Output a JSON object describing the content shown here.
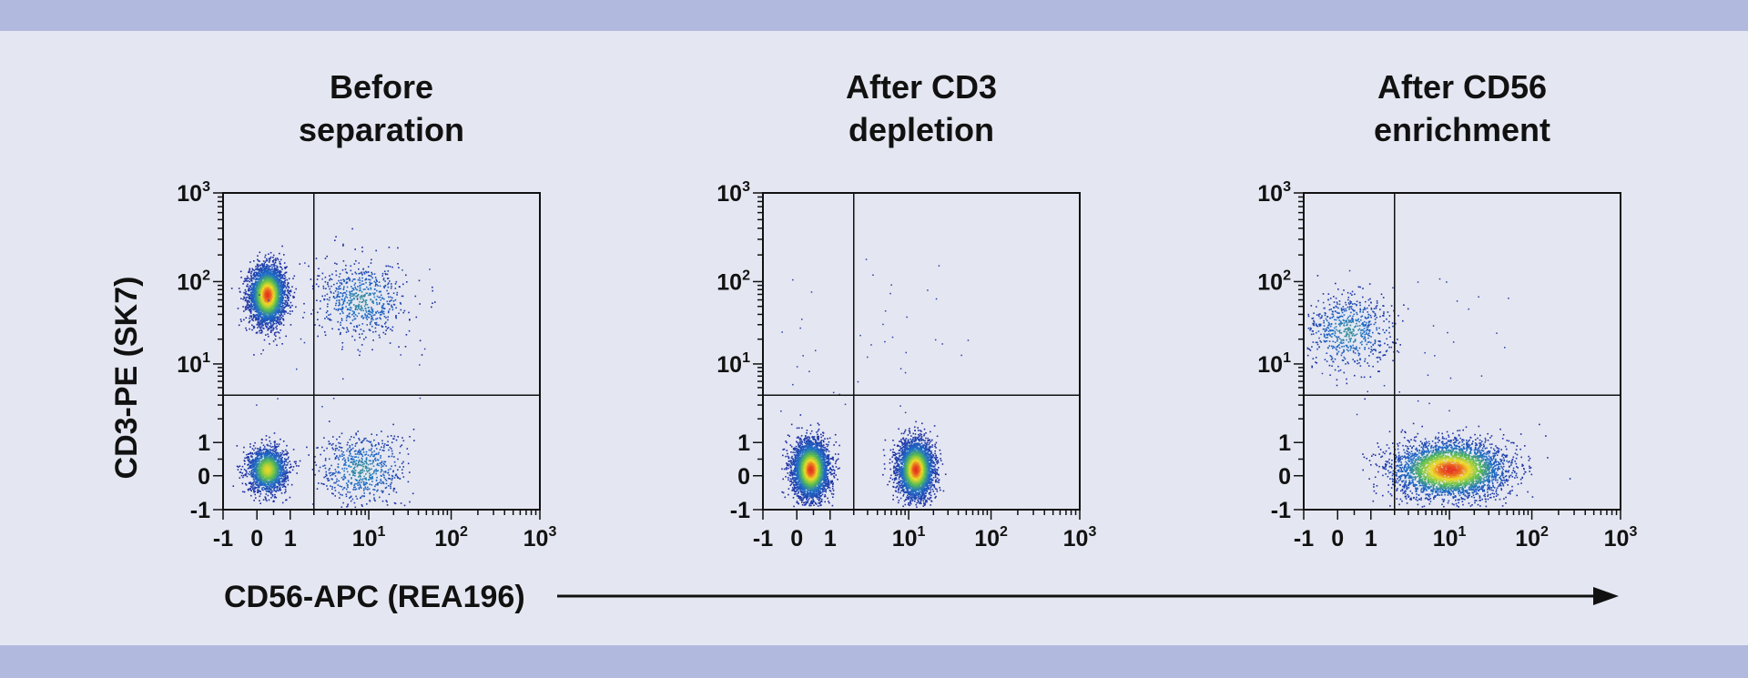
{
  "colors": {
    "band": "#b2b9de",
    "background": "#e4e7f1",
    "axis": "#111111",
    "density_low": "#1a2a9c",
    "density_high": "#e8261f"
  },
  "figure": {
    "ylabel": "CD3-PE (SK7)",
    "xlabel": "CD56-APC (REA196)",
    "y_ticks": [
      {
        "base": "10",
        "exp": "3"
      },
      {
        "base": "10",
        "exp": "2"
      },
      {
        "base": "10",
        "exp": "1"
      },
      {
        "base": "1",
        "exp": ""
      },
      {
        "base": "0",
        "exp": ""
      },
      {
        "base": "-1",
        "exp": ""
      }
    ],
    "x_ticks": [
      {
        "base": "-1",
        "exp": ""
      },
      {
        "base": "0",
        "exp": ""
      },
      {
        "base": "1",
        "exp": ""
      },
      {
        "base": "10",
        "exp": "1"
      },
      {
        "base": "10",
        "exp": "2"
      },
      {
        "base": "10",
        "exp": "3"
      }
    ]
  },
  "chart_data": [
    {
      "type": "scatter",
      "title_lines": [
        "Before",
        "separation"
      ],
      "xlabel": "CD56-APC (REA196)",
      "ylabel": "CD3-PE (SK7)",
      "scale": "biexponential",
      "xlim": [
        -1,
        1000
      ],
      "ylim": [
        -1,
        1000
      ],
      "gates": {
        "x": 2,
        "y": 4
      },
      "populations": [
        {
          "name": "",
          "x": 0.3,
          "y": 70,
          "density": "high"
        },
        {
          "name": "",
          "x": 0.3,
          "y": 0.2,
          "density": "medium"
        },
        {
          "name": "",
          "x": 8,
          "y": 0.2,
          "density": "low"
        },
        {
          "name": "",
          "x": 8,
          "y": 60,
          "density": "low"
        }
      ]
    },
    {
      "type": "scatter",
      "title_lines": [
        "After CD3",
        "depletion"
      ],
      "xlabel": "CD56-APC (REA196)",
      "ylabel": "CD3-PE (SK7)",
      "scale": "biexponential",
      "xlim": [
        -1,
        1000
      ],
      "ylim": [
        -1,
        1000
      ],
      "gates": {
        "x": 2,
        "y": 4
      },
      "populations": [
        {
          "name": "",
          "x": 0.4,
          "y": 0.2,
          "density": "high"
        },
        {
          "name": "",
          "x": 12,
          "y": 0.2,
          "density": "high"
        }
      ]
    },
    {
      "type": "scatter",
      "title_lines": [
        "After CD56",
        "enrichment"
      ],
      "xlabel": "CD56-APC (REA196)",
      "ylabel": "CD3-PE (SK7)",
      "scale": "biexponential",
      "xlim": [
        -1,
        1000
      ],
      "ylim": [
        -1,
        1000
      ],
      "gates": {
        "x": 2,
        "y": 4
      },
      "populations": [
        {
          "name": "",
          "x": 10,
          "y": 0.2,
          "density": "high"
        },
        {
          "name": "",
          "x": 0.3,
          "y": 25,
          "density": "low"
        }
      ]
    }
  ]
}
